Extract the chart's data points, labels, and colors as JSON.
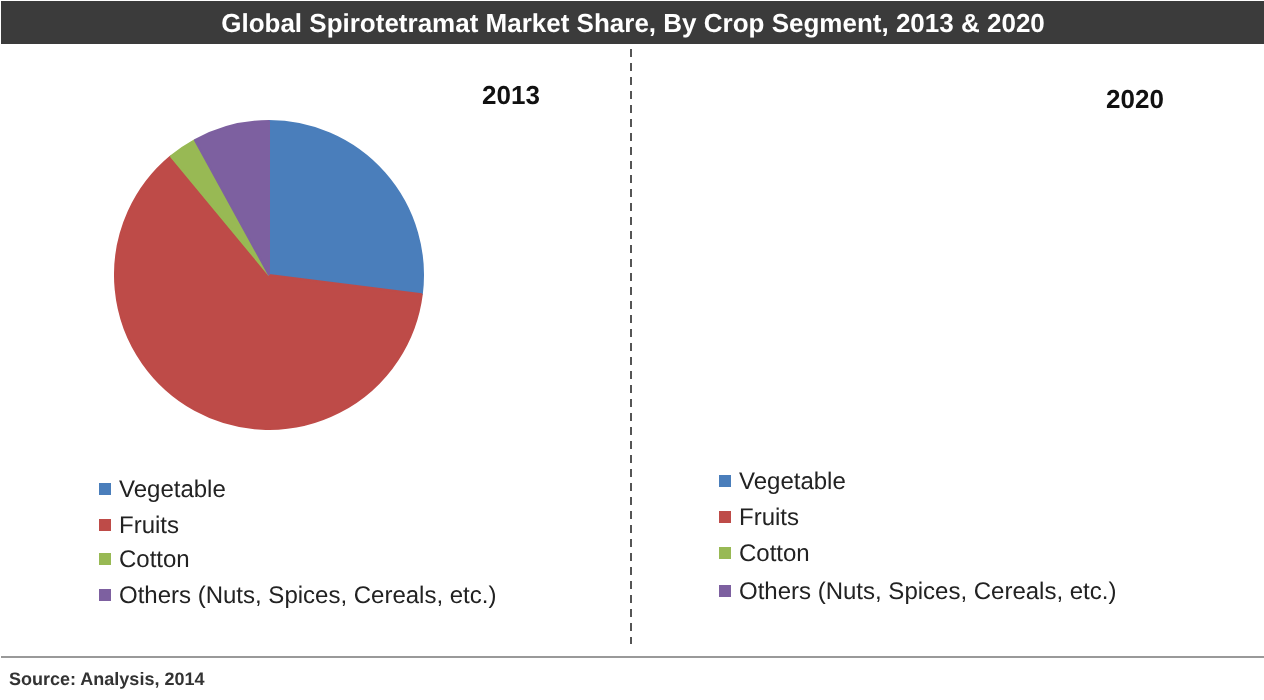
{
  "chart_data": [
    {
      "type": "pie",
      "title": "Global Spirotetramat Market Share, By Crop Segment, 2013 & 2020",
      "subtitle": "2013",
      "categories": [
        "Vegetable",
        "Fruits",
        "Cotton",
        "Others (Nuts, Spices, Cereals, etc.)"
      ],
      "values": [
        27,
        62,
        3,
        8
      ],
      "colors": [
        "#4a7ebb",
        "#be4b48",
        "#98b954",
        "#7d60a0"
      ],
      "legend": "bottom"
    },
    {
      "type": "other",
      "title": "2020",
      "categories": [
        "Vegetable",
        "Fruits",
        "Cotton",
        "Others (Nuts, Spices, Cereals, etc.)"
      ],
      "colors": [
        "#4a7ebb",
        "#be4b48",
        "#98b954",
        "#7d60a0"
      ],
      "annotations": [
        "Source: Analysis, 2014"
      ]
    }
  ]
}
